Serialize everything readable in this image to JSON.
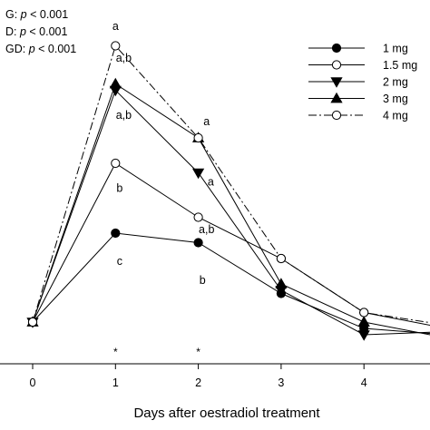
{
  "stats": [
    {
      "prefix": "G: ",
      "p": "p",
      "rest": " < 0.001"
    },
    {
      "prefix": "D: ",
      "p": "p",
      "rest": " < 0.001"
    },
    {
      "prefix": "GD: ",
      "p": "p",
      "rest": " < 0.001"
    }
  ],
  "chart_data": {
    "type": "line",
    "xlabel": "Days after oestradiol treatment",
    "ylabel": "",
    "x": [
      0,
      1,
      2,
      3,
      4,
      5
    ],
    "x_ticks": [
      "0",
      "1",
      "2",
      "3",
      "4"
    ],
    "xlim": [
      -0.4,
      4.8
    ],
    "ylim": [
      0,
      1
    ],
    "grid": false,
    "legend_position": "top-right",
    "series": [
      {
        "name": "1 mg",
        "marker": "circle-filled",
        "dash": "solid",
        "values": [
          0.1,
          0.38,
          0.35,
          0.19,
          0.08,
          0.06
        ]
      },
      {
        "name": "1.5 mg",
        "marker": "circle-open",
        "dash": "solid",
        "values": [
          0.1,
          0.6,
          0.43,
          0.3,
          0.13,
          0.08
        ]
      },
      {
        "name": "2 mg",
        "marker": "triangle-down-filled",
        "dash": "solid",
        "values": [
          0.1,
          0.83,
          0.57,
          0.2,
          0.06,
          0.07
        ]
      },
      {
        "name": "3 mg",
        "marker": "triangle-up-filled",
        "dash": "solid",
        "values": [
          0.1,
          0.85,
          0.68,
          0.22,
          0.1,
          0.05
        ]
      },
      {
        "name": "4 mg",
        "marker": "circle-open",
        "dash": "dashdot",
        "values": [
          0.1,
          0.97,
          0.68,
          0.3,
          0.13,
          0.09
        ]
      }
    ],
    "annotations": [
      {
        "x": 1,
        "y": 1.02,
        "text": "a"
      },
      {
        "x": 1.1,
        "y": 0.92,
        "text": "a,b"
      },
      {
        "x": 1.1,
        "y": 0.74,
        "text": "a,b"
      },
      {
        "x": 1.05,
        "y": 0.51,
        "text": "b"
      },
      {
        "x": 1.05,
        "y": 0.28,
        "text": "c"
      },
      {
        "x": 2.1,
        "y": 0.72,
        "text": "a"
      },
      {
        "x": 2.15,
        "y": 0.53,
        "text": "a"
      },
      {
        "x": 2.1,
        "y": 0.38,
        "text": "a,b"
      },
      {
        "x": 2.05,
        "y": 0.22,
        "text": "b"
      }
    ],
    "stars": [
      {
        "x": 1,
        "text": "*"
      },
      {
        "x": 2,
        "text": "*"
      }
    ]
  }
}
